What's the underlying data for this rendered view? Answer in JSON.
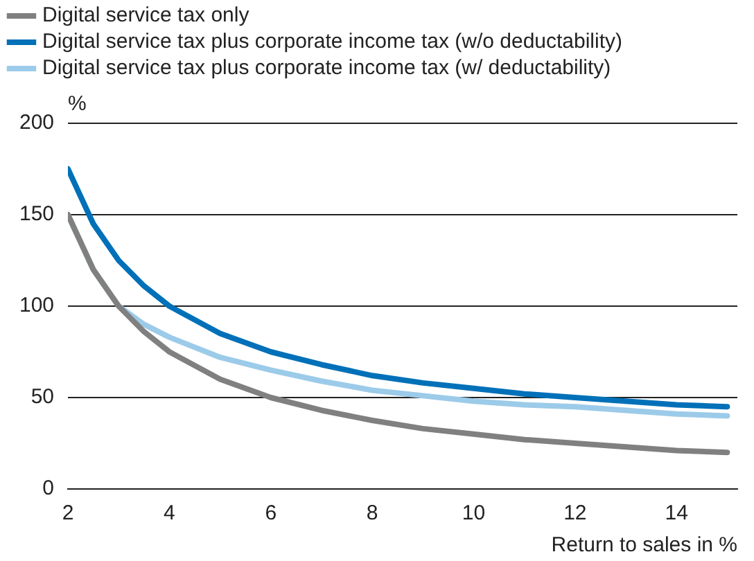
{
  "chart_data": {
    "type": "line",
    "xlabel": "Return to sales in %",
    "ylabel": "%",
    "x": [
      2,
      2.5,
      3,
      3.5,
      4,
      5,
      6,
      7,
      8,
      9,
      10,
      11,
      12,
      13,
      14,
      15
    ],
    "series": [
      {
        "name": "Digital service tax only",
        "color": "#808080",
        "values": [
          150,
          120,
          100,
          86,
          75,
          60,
          50,
          43,
          37.5,
          33,
          30,
          27,
          25,
          23,
          21,
          20
        ]
      },
      {
        "name": "Digital service tax plus corporate income tax (w/o deductability)",
        "color": "#0070b8",
        "values": [
          175,
          145,
          125,
          111,
          100,
          85,
          75,
          68,
          62,
          58,
          55,
          52,
          50,
          48,
          46,
          45
        ]
      },
      {
        "name": "Digital service tax plus corporate income tax (w/ deductability)",
        "color": "#9ccbe9",
        "values": [
          150,
          120,
          100,
          90,
          83,
          72,
          65,
          59,
          54,
          51,
          48,
          46,
          45,
          43,
          41,
          40
        ]
      }
    ],
    "xlim": [
      2,
      15.2
    ],
    "xticks": [
      2,
      4,
      6,
      8,
      10,
      12,
      14
    ],
    "ylim": [
      0,
      200
    ],
    "yticks": [
      0,
      50,
      100,
      150,
      200
    ],
    "grid": "y",
    "legend": "top left",
    "marker": "none",
    "line_style": "solid"
  }
}
